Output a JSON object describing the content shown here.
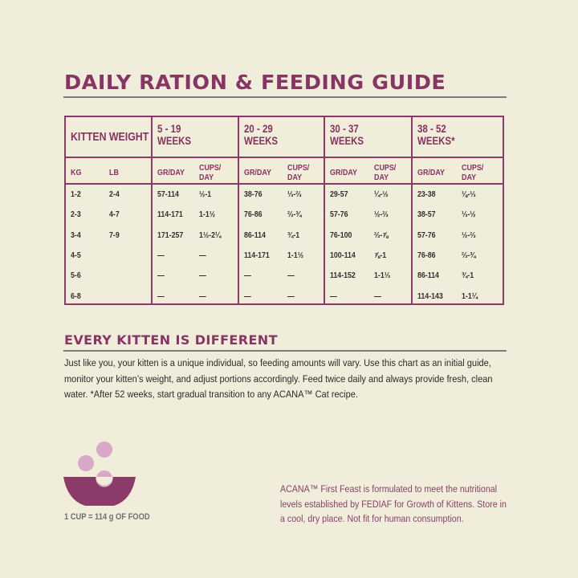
{
  "title": "DAILY RATION & FEEDING GUIDE",
  "table": {
    "weight_header": "KITTEN WEIGHT",
    "weight_sub": [
      "KG",
      "LB"
    ],
    "groups": [
      {
        "line1": "5 - 19",
        "line2": "WEEKS"
      },
      {
        "line1": "20 - 29",
        "line2": "WEEKS"
      },
      {
        "line1": "30 - 37",
        "line2": "WEEKS"
      },
      {
        "line1": "38 - 52",
        "line2": "WEEKS*"
      }
    ],
    "gr_label": "GR/DAY",
    "cups_label1": "CUPS/",
    "cups_label2": "DAY",
    "rows": [
      {
        "kg": "1-2",
        "lb": "2-4",
        "v": [
          "57-114",
          "½-1",
          "38-76",
          "⅓-⅔",
          "29-57",
          "¼-½",
          "23-38",
          "⅛-⅓"
        ]
      },
      {
        "kg": "2-3",
        "lb": "4-7",
        "v": [
          "114-171",
          "1-1½",
          "76-86",
          "⅔-¾",
          "57-76",
          "½-⅔",
          "38-57",
          "⅓-½"
        ]
      },
      {
        "kg": "3-4",
        "lb": "7-9",
        "v": [
          "171-257",
          "1½-2¼",
          "86-114",
          "¾-1",
          "76-100",
          "⅔-⅞",
          "57-76",
          "½-⅔"
        ]
      },
      {
        "kg": "4-5",
        "lb": "",
        "v": [
          "—",
          "—",
          "114-171",
          "1-1½",
          "100-114",
          "⅞-1",
          "76-86",
          "⅔-¾"
        ]
      },
      {
        "kg": "5-6",
        "lb": "",
        "v": [
          "—",
          "—",
          "—",
          "—",
          "114-152",
          "1-1⅓",
          "86-114",
          "¾-1"
        ]
      },
      {
        "kg": "6-8",
        "lb": "",
        "v": [
          "—",
          "—",
          "—",
          "—",
          "—",
          "—",
          "114-143",
          "1-1¼"
        ]
      }
    ]
  },
  "section2": {
    "heading": "EVERY KITTEN IS DIFFERENT",
    "body": "Just like you, your kitten is a unique individual, so feeding amounts will vary. Use this chart as an initial guide, monitor your kitten’s weight, and adjust portions accordingly. Feed twice daily and always provide fresh, clean water. *After 52 weeks, start gradual transition to any ACANA™ Cat recipe."
  },
  "cup_note": "1 CUP = 114 g OF FOOD",
  "legal": "ACANA™ First Feast is formulated to meet the nutritional levels established by FEDIAF for Growth of Kittens. Store in a cool, dry place. Not fit for human consumption.",
  "colors": {
    "background": "#f1eddb",
    "accent": "#883565",
    "bowl": "#8b3a6a",
    "kibble": "#d7a8c8",
    "rule": "#7c7c7c"
  },
  "icons": {
    "bowl": "food-bowl-icon"
  }
}
